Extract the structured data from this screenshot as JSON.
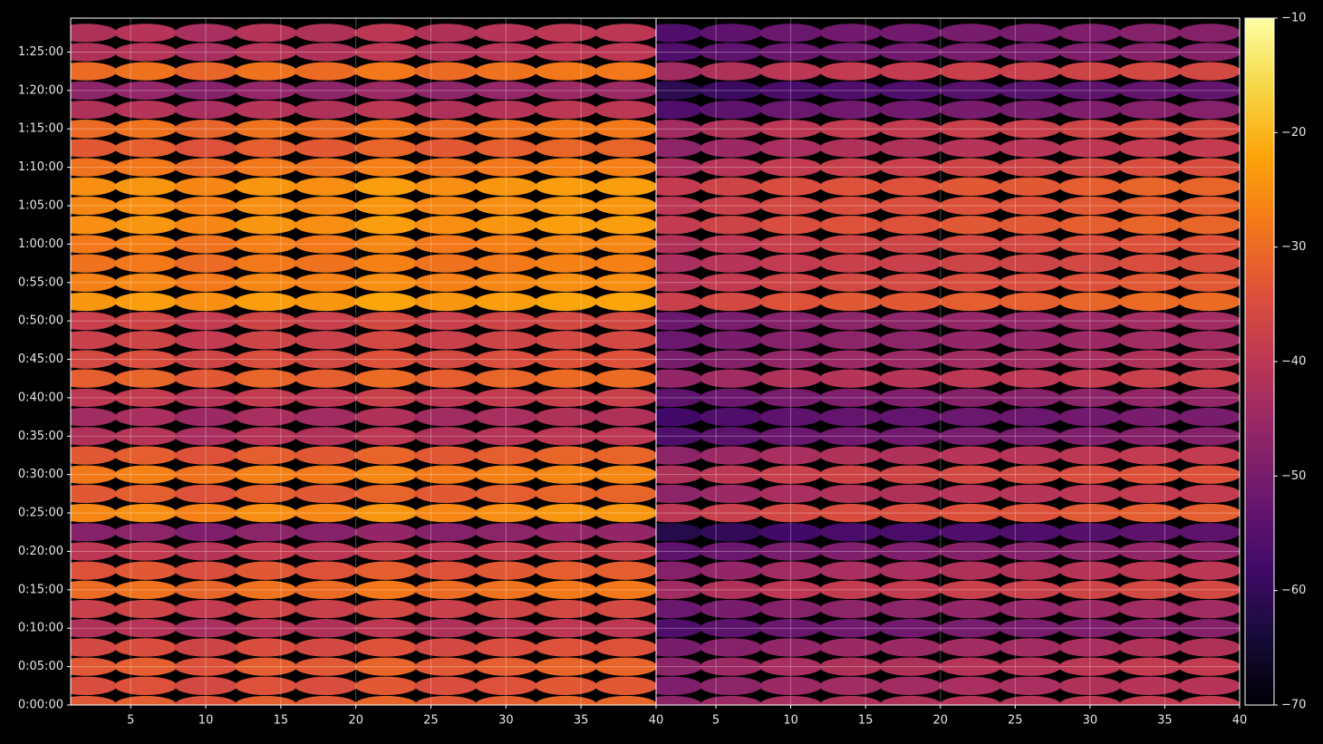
{
  "chart_data": [
    {
      "type": "heatmap",
      "x": [
        2,
        6,
        10,
        14,
        18,
        22,
        26,
        30,
        34,
        38
      ],
      "y": [
        0,
        150,
        300,
        450,
        600,
        750,
        900,
        1050,
        1200,
        1350,
        1500,
        1650,
        1800,
        1950,
        2100,
        2250,
        2400,
        2550,
        2700,
        2850,
        3000,
        3150,
        3300,
        3450,
        3600,
        3750,
        3900,
        4050,
        4200,
        4350,
        4500,
        4650,
        4800,
        4950,
        5100,
        5250
      ],
      "xlim": [
        1,
        40
      ],
      "xticks": [
        5,
        10,
        15,
        20,
        25,
        30,
        35,
        40
      ],
      "ylim": [
        0,
        5365
      ],
      "yticks": [
        {
          "value": 0,
          "label": "0:00:00"
        },
        {
          "value": 300,
          "label": "0:05:00"
        },
        {
          "value": 600,
          "label": "0:10:00"
        },
        {
          "value": 900,
          "label": "0:15:00"
        },
        {
          "value": 1200,
          "label": "0:20:00"
        },
        {
          "value": 1500,
          "label": "0:25:00"
        },
        {
          "value": 1800,
          "label": "0:30:00"
        },
        {
          "value": 2100,
          "label": "0:35:00"
        },
        {
          "value": 2400,
          "label": "0:40:00"
        },
        {
          "value": 2700,
          "label": "0:45:00"
        },
        {
          "value": 3000,
          "label": "0:50:00"
        },
        {
          "value": 3300,
          "label": "0:55:00"
        },
        {
          "value": 3600,
          "label": "1:00:00"
        },
        {
          "value": 3900,
          "label": "1:05:00"
        },
        {
          "value": 4200,
          "label": "1:10:00"
        },
        {
          "value": 4500,
          "label": "1:15:00"
        },
        {
          "value": 4800,
          "label": "1:20:00"
        },
        {
          "value": 5100,
          "label": "1:25:00"
        }
      ],
      "grid": true,
      "values": [
        [
          -33,
          -32,
          -34,
          -32,
          -33,
          -31,
          -33,
          -32,
          -31,
          -31
        ],
        [
          -35,
          -34,
          -36,
          -34,
          -35,
          -33,
          -35,
          -34,
          -33,
          -33
        ],
        [
          -33,
          -32,
          -34,
          -32,
          -33,
          -31,
          -33,
          -32,
          -31,
          -31
        ],
        [
          -36,
          -35,
          -37,
          -35,
          -36,
          -34,
          -36,
          -35,
          -34,
          -34
        ],
        [
          -42,
          -41,
          -43,
          -41,
          -42,
          -40,
          -42,
          -41,
          -40,
          -40
        ],
        [
          -38,
          -37,
          -39,
          -37,
          -38,
          -36,
          -38,
          -37,
          -36,
          -36
        ],
        [
          -30,
          -29,
          -31,
          -29,
          -30,
          -28,
          -30,
          -29,
          -28,
          -28
        ],
        [
          -34,
          -33,
          -35,
          -33,
          -34,
          -32,
          -34,
          -33,
          -32,
          -32
        ],
        [
          -40,
          -39,
          -41,
          -39,
          -40,
          -38,
          -40,
          -39,
          -38,
          -38
        ],
        [
          -48,
          -47,
          -49,
          -47,
          -48,
          -46,
          -48,
          -47,
          -46,
          -46
        ],
        [
          -26,
          -25,
          -27,
          -25,
          -26,
          -24,
          -26,
          -25,
          -24,
          -24
        ],
        [
          -33,
          -32,
          -34,
          -32,
          -33,
          -31,
          -33,
          -32,
          -31,
          -31
        ],
        [
          -28,
          -27,
          -29,
          -27,
          -28,
          -26,
          -28,
          -27,
          -26,
          -26
        ],
        [
          -33,
          -32,
          -34,
          -32,
          -33,
          -31,
          -33,
          -32,
          -31,
          -31
        ],
        [
          -42,
          -41,
          -43,
          -41,
          -42,
          -40,
          -42,
          -41,
          -40,
          -40
        ],
        [
          -44,
          -43,
          -45,
          -43,
          -44,
          -42,
          -44,
          -43,
          -42,
          -42
        ],
        [
          -40,
          -39,
          -41,
          -39,
          -40,
          -38,
          -40,
          -39,
          -38,
          -38
        ],
        [
          -32,
          -31,
          -33,
          -31,
          -32,
          -30,
          -32,
          -31,
          -30,
          -30
        ],
        [
          -36,
          -35,
          -37,
          -35,
          -36,
          -34,
          -36,
          -35,
          -34,
          -34
        ],
        [
          -38,
          -37,
          -39,
          -37,
          -38,
          -36,
          -38,
          -37,
          -36,
          -36
        ],
        [
          -38,
          -37,
          -39,
          -37,
          -38,
          -36,
          -38,
          -37,
          -36,
          -36
        ],
        [
          -24,
          -23,
          -25,
          -23,
          -24,
          -22,
          -24,
          -23,
          -22,
          -22
        ],
        [
          -27,
          -26,
          -28,
          -26,
          -27,
          -25,
          -27,
          -26,
          -25,
          -25
        ],
        [
          -29,
          -28,
          -30,
          -28,
          -29,
          -27,
          -29,
          -28,
          -27,
          -27
        ],
        [
          -28,
          -27,
          -29,
          -27,
          -28,
          -26,
          -28,
          -27,
          -26,
          -26
        ],
        [
          -25,
          -24,
          -26,
          -24,
          -25,
          -23,
          -25,
          -24,
          -23,
          -23
        ],
        [
          -26,
          -25,
          -27,
          -25,
          -26,
          -24,
          -26,
          -25,
          -24,
          -24
        ],
        [
          -25,
          -24,
          -26,
          -24,
          -25,
          -23,
          -25,
          -24,
          -23,
          -23
        ],
        [
          -29,
          -28,
          -30,
          -28,
          -29,
          -27,
          -29,
          -28,
          -27,
          -27
        ],
        [
          -33,
          -32,
          -34,
          -32,
          -33,
          -31,
          -33,
          -32,
          -31,
          -31
        ],
        [
          -30,
          -29,
          -31,
          -29,
          -30,
          -28,
          -30,
          -29,
          -28,
          -28
        ],
        [
          -42,
          -41,
          -43,
          -41,
          -42,
          -40,
          -42,
          -41,
          -40,
          -40
        ],
        [
          -47,
          -46,
          -48,
          -46,
          -47,
          -45,
          -47,
          -46,
          -45,
          -45
        ],
        [
          -30,
          -29,
          -31,
          -29,
          -30,
          -28,
          -30,
          -29,
          -28,
          -28
        ],
        [
          -42,
          -41,
          -43,
          -41,
          -42,
          -40,
          -42,
          -41,
          -40,
          -40
        ],
        [
          -42,
          -41,
          -43,
          -41,
          -42,
          -40,
          -42,
          -41,
          -40,
          -40
        ]
      ]
    },
    {
      "type": "heatmap",
      "x": [
        2,
        6,
        10,
        14,
        18,
        22,
        26,
        30,
        34,
        38
      ],
      "y": [
        0,
        150,
        300,
        450,
        600,
        750,
        900,
        1050,
        1200,
        1350,
        1500,
        1650,
        1800,
        1950,
        2100,
        2250,
        2400,
        2550,
        2700,
        2850,
        3000,
        3150,
        3300,
        3450,
        3600,
        3750,
        3900,
        4050,
        4200,
        4350,
        4500,
        4650,
        4800,
        4950,
        5100,
        5250
      ],
      "xlim": [
        1,
        40
      ],
      "xticks": [
        5,
        10,
        15,
        20,
        25,
        30,
        35,
        40
      ],
      "ylim": [
        0,
        5365
      ],
      "grid": true,
      "values": [
        [
          -47,
          -45,
          -43,
          -42,
          -42,
          -41,
          -41,
          -40,
          -39,
          -39
        ],
        [
          -49,
          -47,
          -45,
          -44,
          -44,
          -43,
          -43,
          -42,
          -41,
          -41
        ],
        [
          -47,
          -45,
          -43,
          -42,
          -42,
          -41,
          -41,
          -40,
          -39,
          -39
        ],
        [
          -50,
          -48,
          -46,
          -45,
          -45,
          -44,
          -44,
          -43,
          -42,
          -42
        ],
        [
          -56,
          -54,
          -52,
          -51,
          -51,
          -50,
          -50,
          -49,
          -48,
          -48
        ],
        [
          -52,
          -50,
          -48,
          -47,
          -47,
          -46,
          -46,
          -45,
          -44,
          -44
        ],
        [
          -44,
          -42,
          -40,
          -39,
          -39,
          -38,
          -38,
          -37,
          -36,
          -36
        ],
        [
          -48,
          -46,
          -44,
          -43,
          -43,
          -42,
          -42,
          -41,
          -40,
          -40
        ],
        [
          -54,
          -52,
          -50,
          -49,
          -49,
          -48,
          -48,
          -47,
          -46,
          -46
        ],
        [
          -62,
          -60,
          -58,
          -57,
          -57,
          -56,
          -56,
          -55,
          -54,
          -54
        ],
        [
          -40,
          -38,
          -36,
          -35,
          -35,
          -34,
          -34,
          -33,
          -32,
          -32
        ],
        [
          -47,
          -45,
          -43,
          -42,
          -42,
          -41,
          -41,
          -40,
          -39,
          -39
        ],
        [
          -42,
          -40,
          -38,
          -37,
          -37,
          -36,
          -36,
          -35,
          -34,
          -34
        ],
        [
          -47,
          -45,
          -43,
          -42,
          -42,
          -41,
          -41,
          -40,
          -39,
          -39
        ],
        [
          -56,
          -54,
          -52,
          -51,
          -51,
          -50,
          -50,
          -49,
          -48,
          -48
        ],
        [
          -58,
          -56,
          -54,
          -53,
          -53,
          -52,
          -52,
          -51,
          -50,
          -50
        ],
        [
          -54,
          -52,
          -50,
          -49,
          -49,
          -48,
          -48,
          -47,
          -46,
          -46
        ],
        [
          -46,
          -44,
          -42,
          -41,
          -41,
          -40,
          -40,
          -39,
          -38,
          -38
        ],
        [
          -50,
          -48,
          -46,
          -45,
          -45,
          -44,
          -44,
          -43,
          -42,
          -42
        ],
        [
          -52,
          -50,
          -48,
          -47,
          -47,
          -46,
          -46,
          -45,
          -44,
          -44
        ],
        [
          -52,
          -50,
          -48,
          -47,
          -47,
          -46,
          -46,
          -45,
          -44,
          -44
        ],
        [
          -38,
          -36,
          -34,
          -33,
          -33,
          -32,
          -32,
          -31,
          -30,
          -30
        ],
        [
          -41,
          -39,
          -37,
          -36,
          -36,
          -35,
          -35,
          -34,
          -33,
          -33
        ],
        [
          -43,
          -41,
          -39,
          -38,
          -38,
          -37,
          -37,
          -36,
          -35,
          -35
        ],
        [
          -42,
          -40,
          -38,
          -37,
          -37,
          -36,
          -36,
          -35,
          -34,
          -34
        ],
        [
          -39,
          -37,
          -35,
          -34,
          -34,
          -33,
          -33,
          -32,
          -31,
          -31
        ],
        [
          -40,
          -38,
          -36,
          -35,
          -35,
          -34,
          -34,
          -33,
          -32,
          -32
        ],
        [
          -39,
          -37,
          -35,
          -34,
          -34,
          -33,
          -33,
          -32,
          -31,
          -31
        ],
        [
          -43,
          -41,
          -39,
          -38,
          -38,
          -37,
          -37,
          -36,
          -35,
          -35
        ],
        [
          -47,
          -45,
          -43,
          -42,
          -42,
          -41,
          -41,
          -40,
          -39,
          -39
        ],
        [
          -44,
          -42,
          -40,
          -39,
          -39,
          -38,
          -38,
          -37,
          -36,
          -36
        ],
        [
          -56,
          -54,
          -52,
          -51,
          -51,
          -50,
          -50,
          -49,
          -48,
          -48
        ],
        [
          -61,
          -59,
          -57,
          -56,
          -56,
          -55,
          -55,
          -54,
          -53,
          -53
        ],
        [
          -44,
          -42,
          -40,
          -39,
          -39,
          -38,
          -38,
          -37,
          -36,
          -36
        ],
        [
          -56,
          -54,
          -52,
          -51,
          -51,
          -50,
          -50,
          -49,
          -48,
          -48
        ],
        [
          -56,
          -54,
          -52,
          -51,
          -51,
          -50,
          -50,
          -49,
          -48,
          -48
        ]
      ],
      "colorbar": {
        "cmap": "inferno",
        "lim": [
          -70,
          -10
        ],
        "ticks": [
          {
            "value": -70,
            "label": "−70"
          },
          {
            "value": -60,
            "label": "−60"
          },
          {
            "value": -50,
            "label": "−50"
          },
          {
            "value": -40,
            "label": "−40"
          },
          {
            "value": -30,
            "label": "−30"
          },
          {
            "value": -20,
            "label": "−20"
          },
          {
            "value": -10,
            "label": "−10"
          }
        ]
      }
    }
  ]
}
